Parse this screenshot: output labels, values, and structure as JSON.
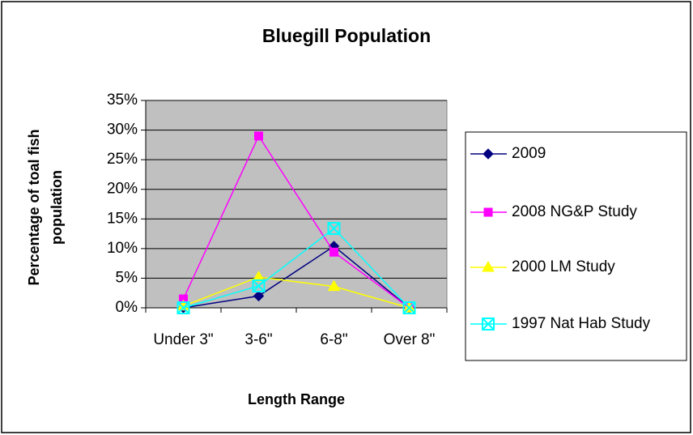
{
  "chart_data": {
    "type": "line",
    "title": "Bluegill Population",
    "x_label": "Length Range",
    "y_label": "Percentage of toal fish population",
    "categories": [
      "Under 3\"",
      "3-6\"",
      "6-8\"",
      "Over 8\""
    ],
    "series": [
      {
        "name": "2009",
        "color": "#000080",
        "marker": "diamond",
        "values": [
          0,
          2,
          10.4,
          0
        ]
      },
      {
        "name": "2008 NG&P Study",
        "color": "#ff00ff",
        "marker": "square",
        "values": [
          1.5,
          29,
          9.4,
          0
        ]
      },
      {
        "name": "2000 LM Study",
        "color": "#ffff00",
        "marker": "triangle",
        "values": [
          0.3,
          5.2,
          3.6,
          0
        ]
      },
      {
        "name": "1997 Nat Hab Study",
        "color": "#00ffff",
        "marker": "square-x",
        "values": [
          0,
          3.7,
          13.4,
          0
        ]
      }
    ],
    "ylim": [
      0,
      35
    ],
    "yticks": [
      {
        "value": 0,
        "label": "0%"
      },
      {
        "value": 5,
        "label": "5%"
      },
      {
        "value": 10,
        "label": "10%"
      },
      {
        "value": 15,
        "label": "15%"
      },
      {
        "value": 20,
        "label": "20%"
      },
      {
        "value": 25,
        "label": "25%"
      },
      {
        "value": 30,
        "label": "30%"
      },
      {
        "value": 35,
        "label": "35%"
      }
    ],
    "grid": true,
    "legend": "right",
    "plot_background": "#c0c0c0"
  }
}
